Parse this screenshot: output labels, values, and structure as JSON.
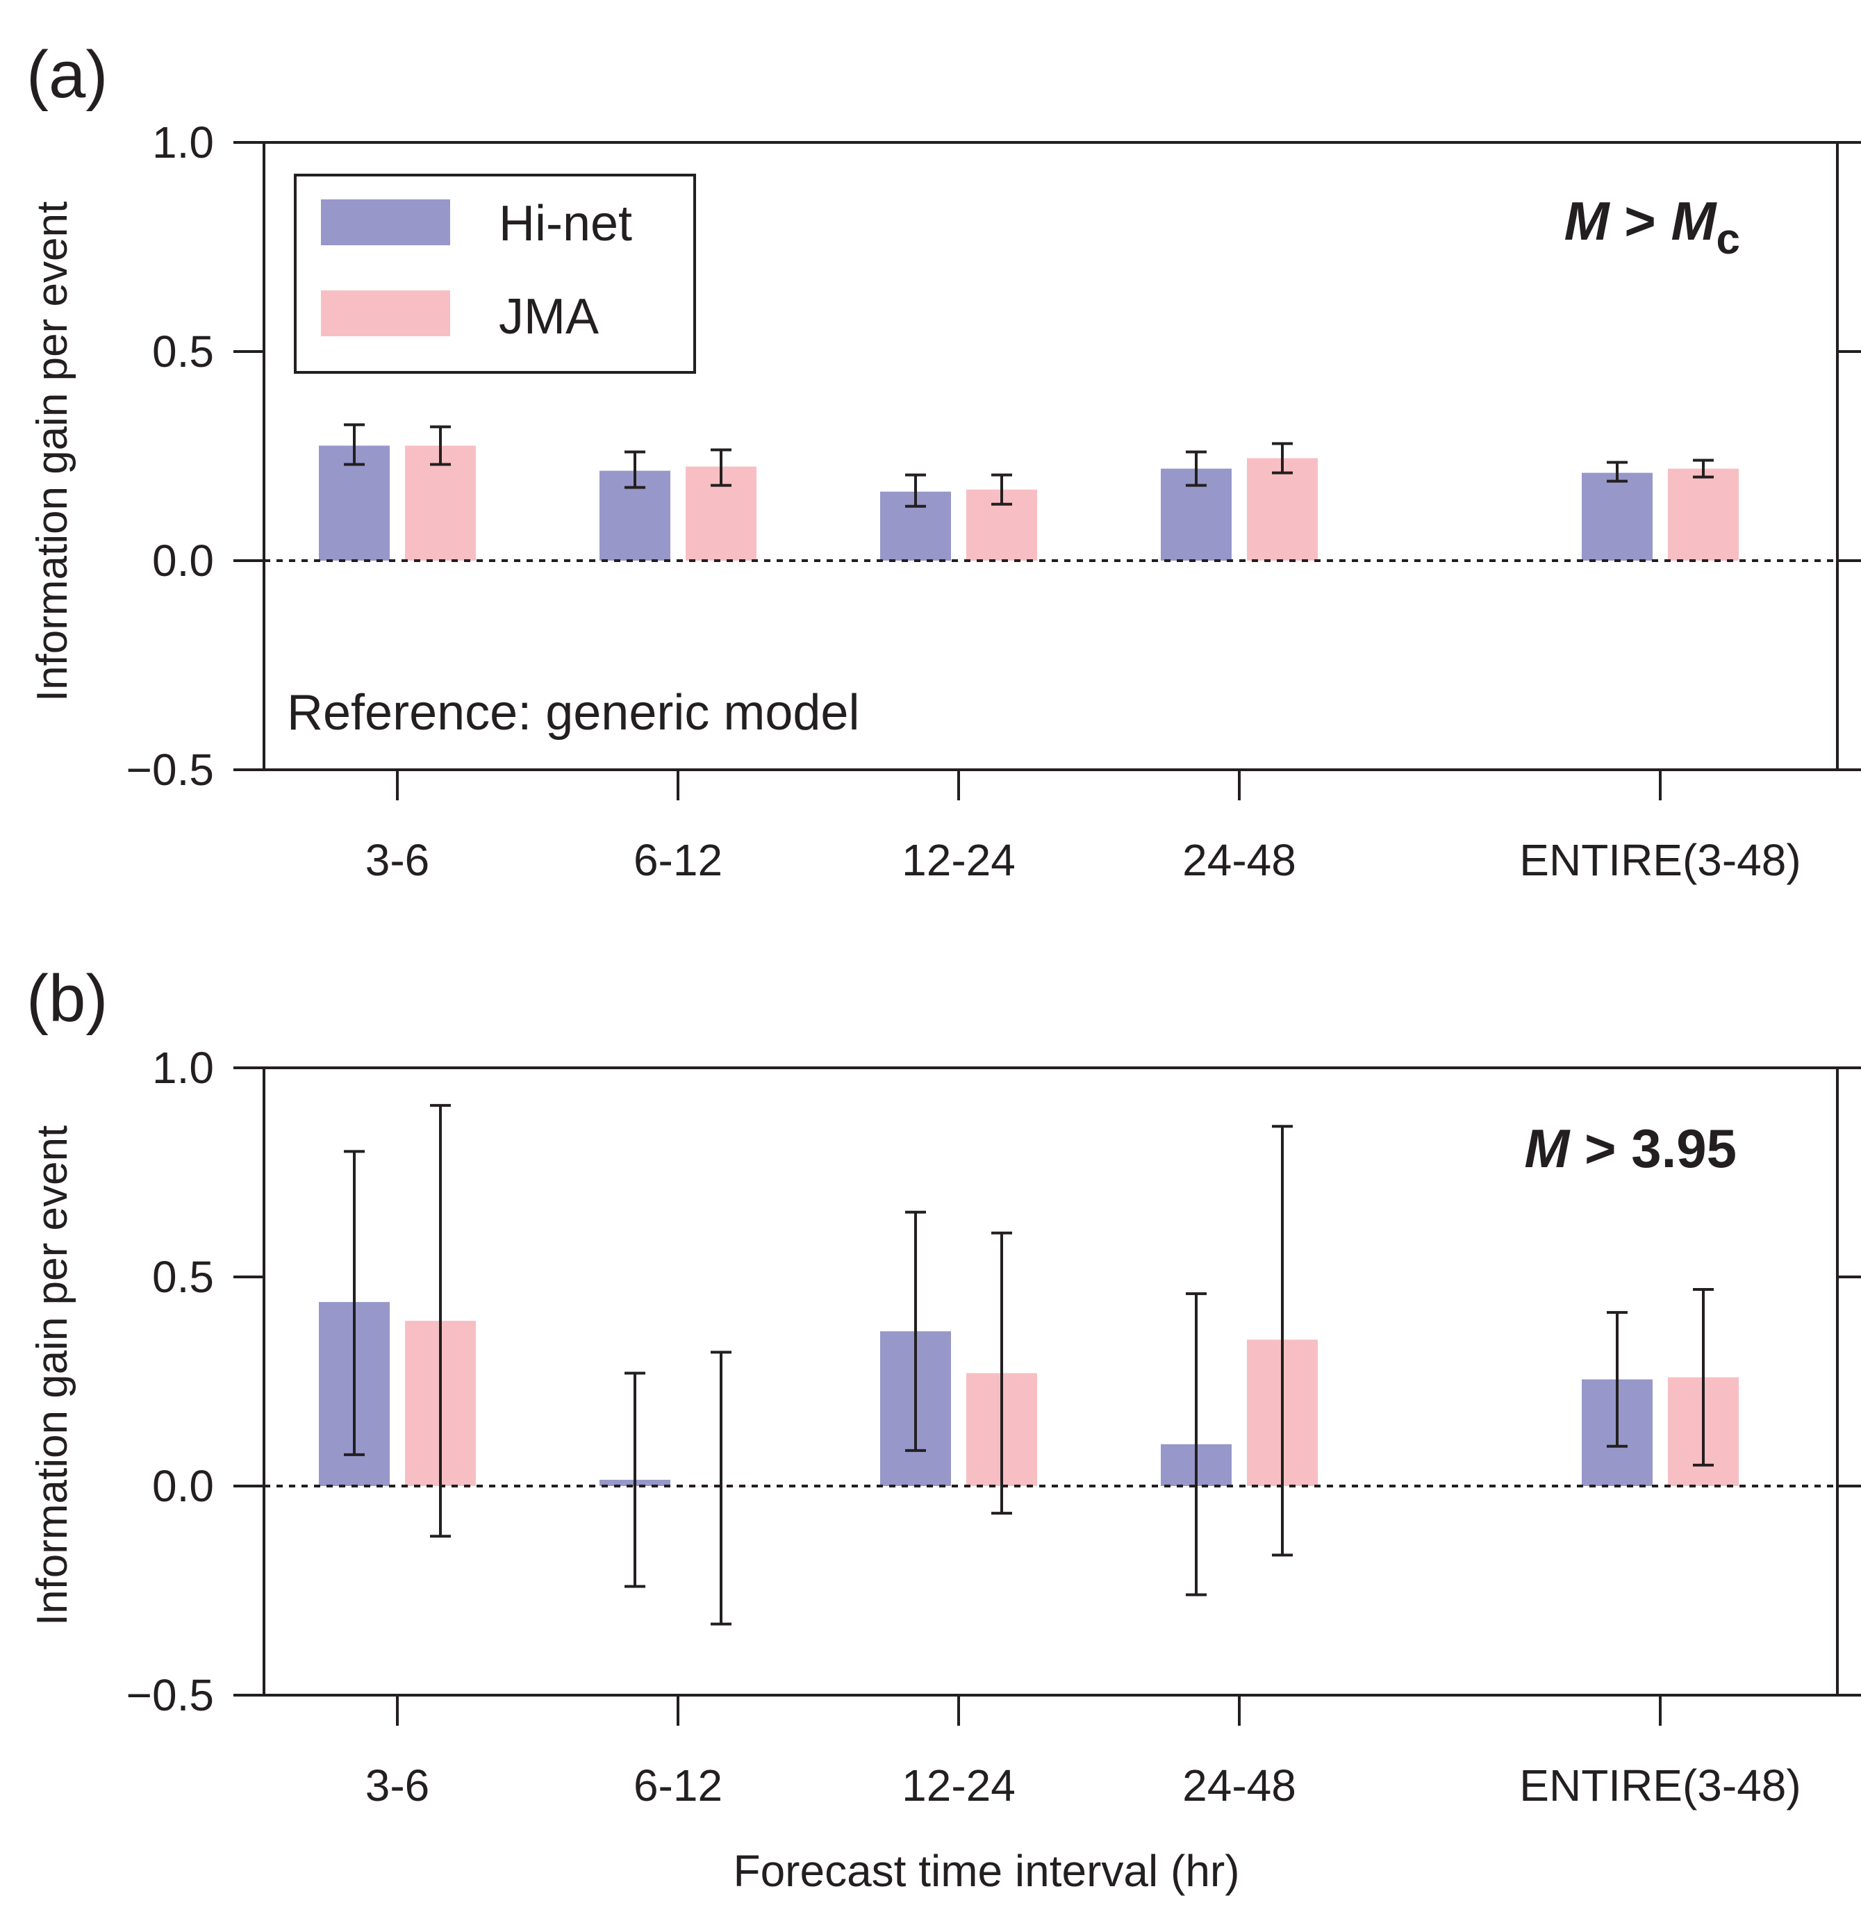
{
  "colors": {
    "hinet": "#9797c9",
    "jma": "#f7bfc3",
    "axis": "#231f20",
    "errorbar": "#231f20"
  },
  "chart_data": [
    {
      "type": "bar",
      "panel_label": "(a)",
      "title": "",
      "condition_label": {
        "m": "M",
        "op": " > ",
        "m2": "M",
        "sub": "c"
      },
      "annotation": "Reference: generic model",
      "xlabel": "",
      "ylabel": "Information gain per event",
      "ylim": [
        -0.5,
        1.0
      ],
      "yticks": [
        -0.5,
        0.0,
        0.5,
        1.0
      ],
      "ytick_labels": [
        "−0.5",
        "0.0",
        "0.5",
        "1.0"
      ],
      "categories": [
        "3-6",
        "6-12",
        "12-24",
        "24-48",
        "ENTIRE(3-48)"
      ],
      "category_positions": [
        0,
        1,
        2,
        3,
        4.5
      ],
      "zero_line": "dotted",
      "legend": {
        "placement": "top-left",
        "entries": [
          "Hi-net",
          "JMA"
        ]
      },
      "series": [
        {
          "name": "Hi-net",
          "color_key": "hinet",
          "values": [
            0.275,
            0.215,
            0.165,
            0.22,
            0.21
          ],
          "err_low": [
            0.23,
            0.175,
            0.13,
            0.18,
            0.19
          ],
          "err_high": [
            0.325,
            0.26,
            0.205,
            0.26,
            0.235
          ]
        },
        {
          "name": "JMA",
          "color_key": "jma",
          "values": [
            0.275,
            0.225,
            0.17,
            0.245,
            0.22
          ],
          "err_low": [
            0.23,
            0.18,
            0.135,
            0.21,
            0.2
          ],
          "err_high": [
            0.32,
            0.265,
            0.205,
            0.28,
            0.24
          ]
        }
      ]
    },
    {
      "type": "bar",
      "panel_label": "(b)",
      "title": "",
      "condition_label": {
        "m": "M",
        "op": " > 3.95"
      },
      "xlabel": "Forecast time interval (hr)",
      "ylabel": "Information gain per event",
      "ylim": [
        -0.5,
        1.0
      ],
      "yticks": [
        -0.5,
        0.0,
        0.5,
        1.0
      ],
      "ytick_labels": [
        "−0.5",
        "0.0",
        "0.5",
        "1.0"
      ],
      "categories": [
        "3-6",
        "6-12",
        "12-24",
        "24-48",
        "ENTIRE(3-48)"
      ],
      "category_positions": [
        0,
        1,
        2,
        3,
        4.5
      ],
      "zero_line": "dotted",
      "series": [
        {
          "name": "Hi-net",
          "color_key": "hinet",
          "values": [
            0.44,
            0.015,
            0.37,
            0.1,
            0.255
          ],
          "err_low": [
            0.075,
            -0.24,
            0.085,
            -0.26,
            0.095
          ],
          "err_high": [
            0.8,
            0.27,
            0.655,
            0.46,
            0.415
          ]
        },
        {
          "name": "JMA",
          "color_key": "jma",
          "values": [
            0.395,
            0.0,
            0.27,
            0.35,
            0.26
          ],
          "err_low": [
            -0.12,
            -0.33,
            -0.065,
            -0.165,
            0.05
          ],
          "err_high": [
            0.91,
            0.32,
            0.605,
            0.86,
            0.47
          ]
        }
      ]
    }
  ]
}
